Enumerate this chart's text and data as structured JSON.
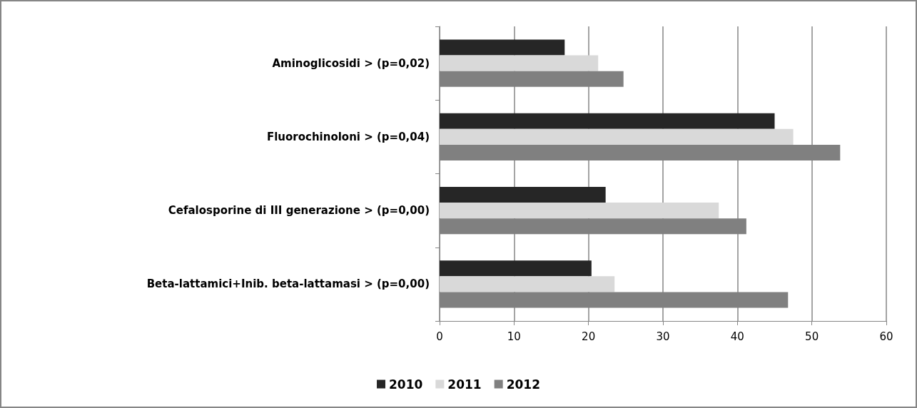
{
  "chart_data": {
    "type": "bar",
    "orientation": "horizontal",
    "categories": [
      "Aminoglicosidi > (p=0,02)",
      "Fluorochinoloni > (p=0,04)",
      "Cefalosporine di III generazione > (p=0,00)",
      "Beta-lattamici+Inib. beta-lattamasi > (p=0,00)"
    ],
    "series": [
      {
        "name": "2010",
        "color": "#262626",
        "values": [
          16.8,
          45.0,
          22.3,
          20.4
        ]
      },
      {
        "name": "2011",
        "color": "#d9d9d9",
        "values": [
          21.3,
          47.5,
          37.5,
          23.5
        ]
      },
      {
        "name": "2012",
        "color": "#808080",
        "values": [
          24.7,
          53.8,
          41.2,
          46.8
        ]
      }
    ],
    "xlim": [
      0,
      60
    ],
    "xticks": [
      0,
      10,
      20,
      30,
      40,
      50,
      60
    ],
    "grid": "x",
    "legend": "bottom"
  }
}
